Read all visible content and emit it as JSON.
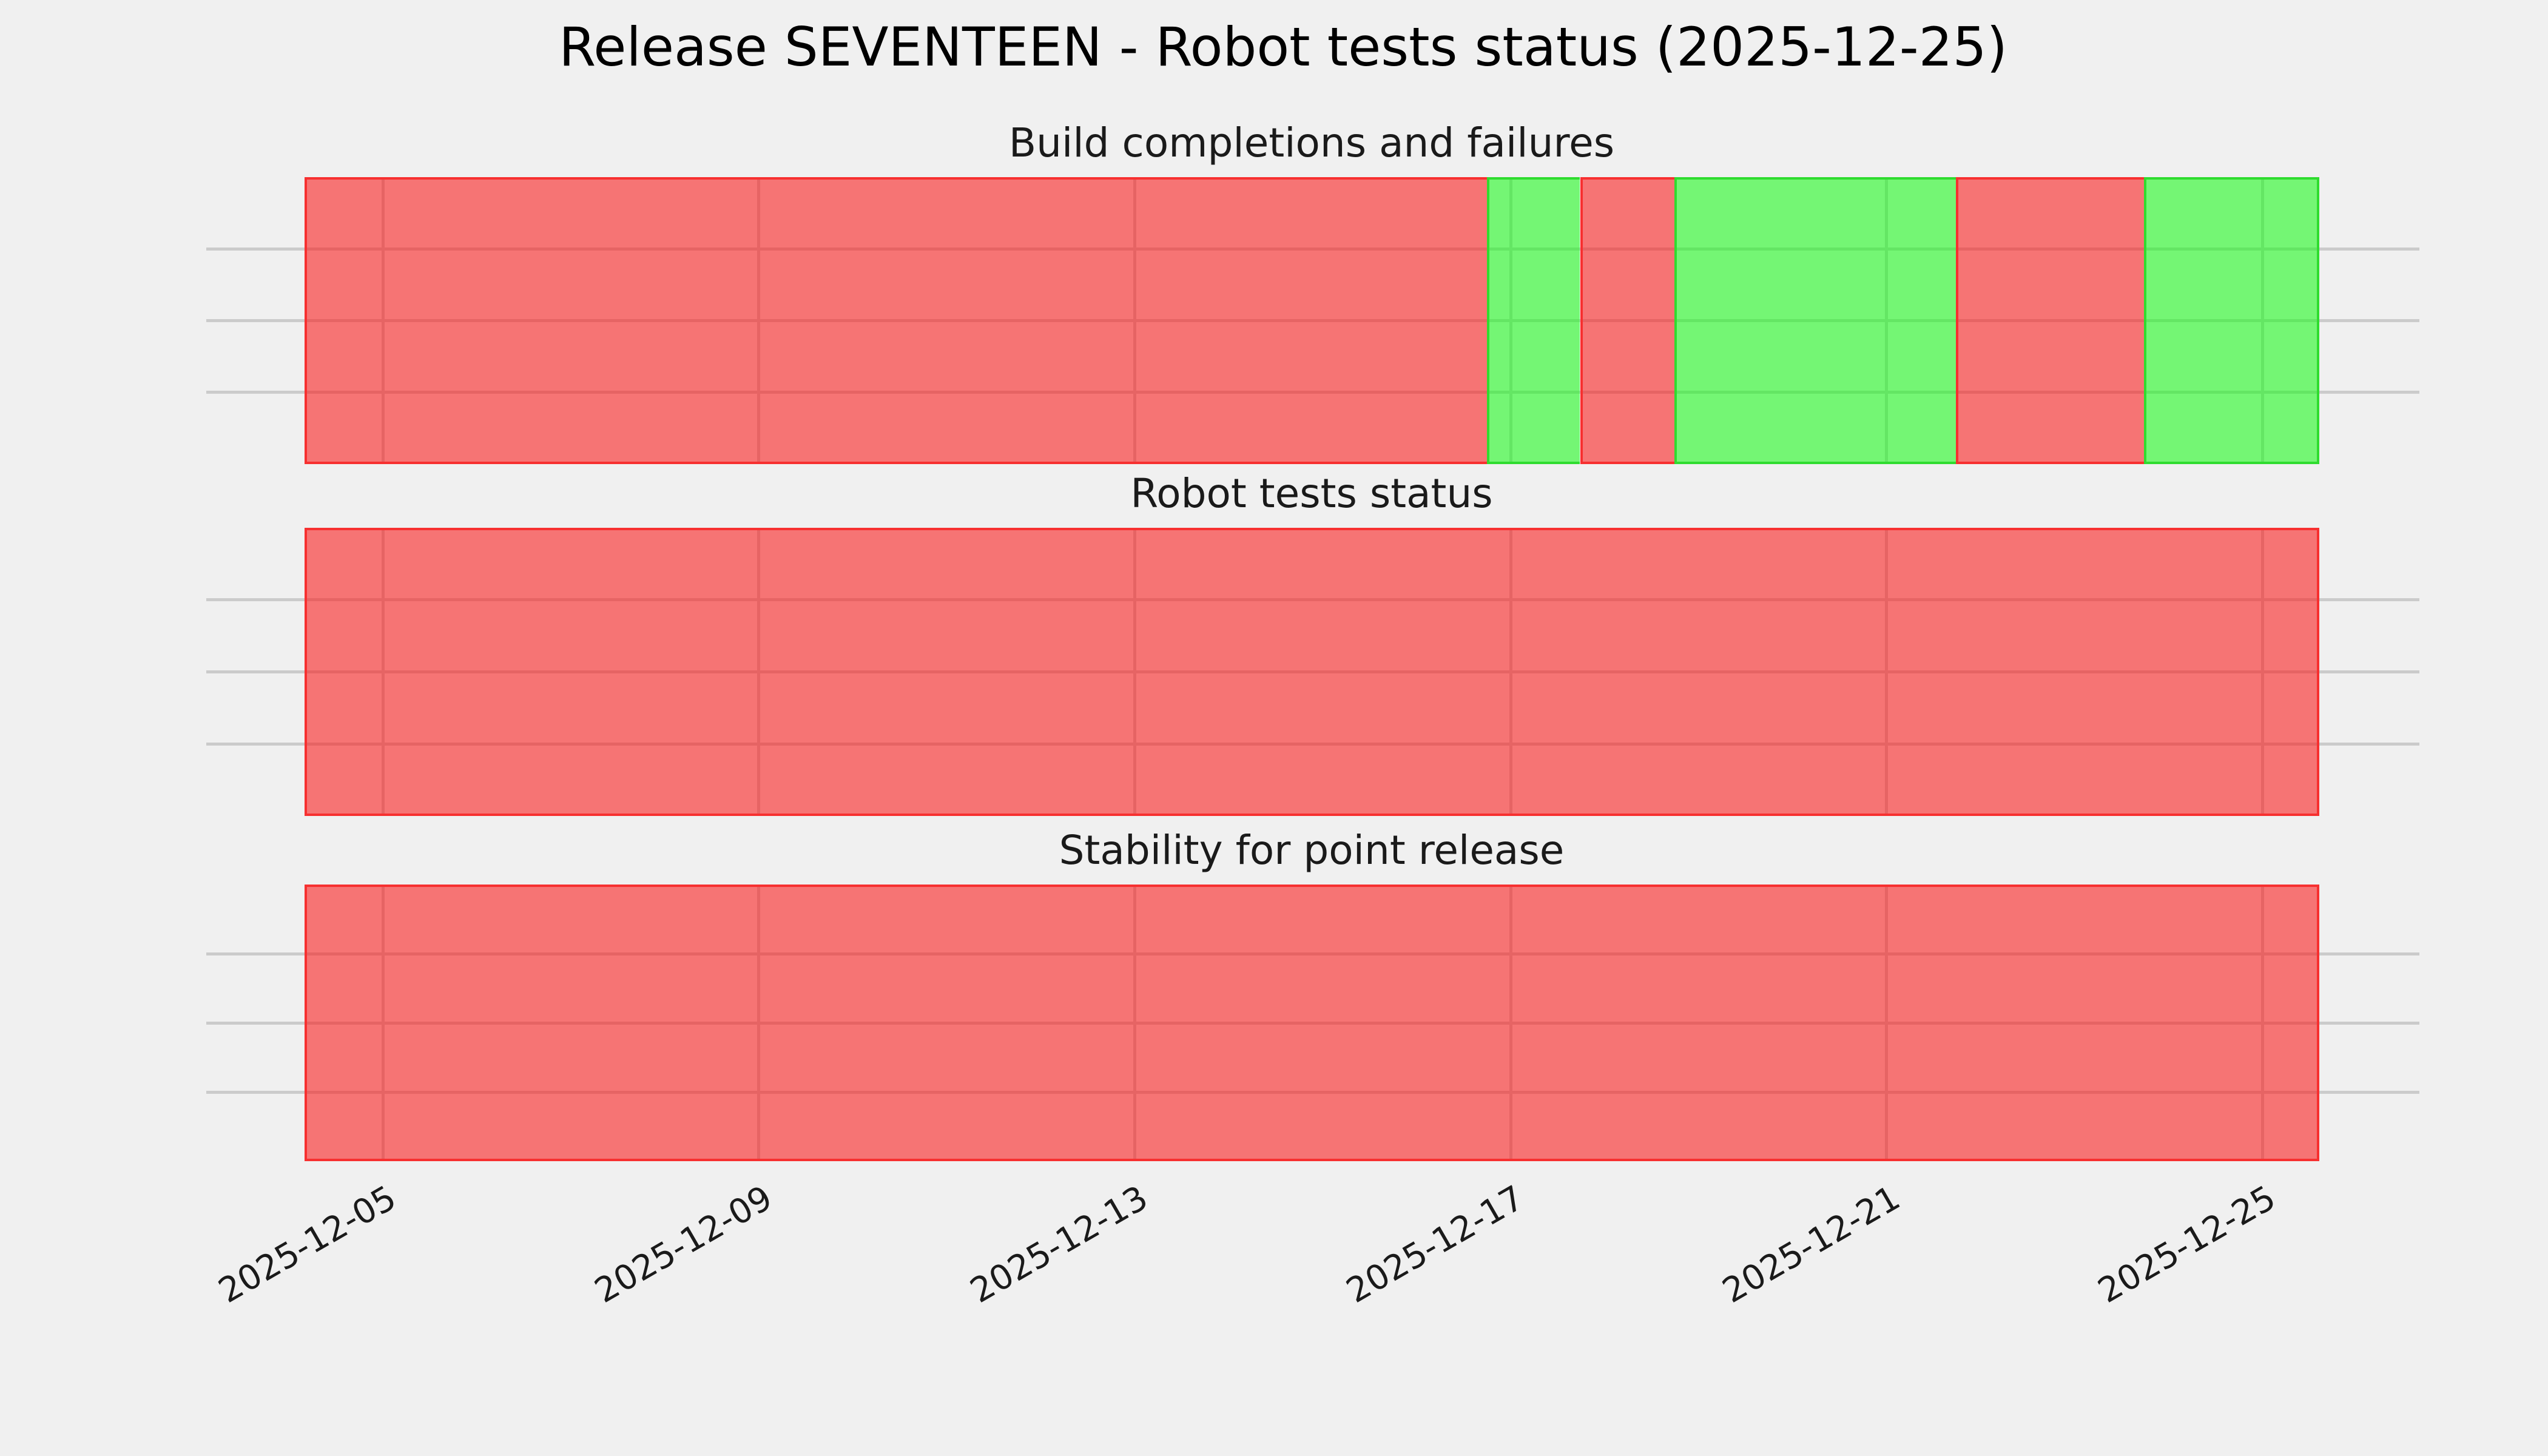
{
  "figure": {
    "background": "#F0F0F0",
    "grid_color": "#CBCBCB"
  },
  "chart_data": {
    "type": "heatmap",
    "title": "Release SEVENTEEN - Robot tests status (2025-12-25)",
    "legend": "none",
    "x_axis": {
      "start": "2025-12-04T04:00",
      "end": "2025-12-25T14:30",
      "ticks": [
        "2025-12-05",
        "2025-12-09",
        "2025-12-13",
        "2025-12-17",
        "2025-12-21",
        "2025-12-25"
      ],
      "tick_interval_days": 4,
      "tick_rotation_deg": 30,
      "grid": true
    },
    "y_axis": {
      "tick_labels": [],
      "rows_per_panel": 4,
      "grid": true
    },
    "status_colors": {
      "fail_fill": "rgba(250,25,25,0.58)",
      "pass_fill": "rgba(25,250,25,0.58)",
      "fail_edge": "#F73030",
      "pass_edge": "#2FDC2F"
    },
    "panels": [
      {
        "title": "Build completions and failures",
        "segments": [
          {
            "status": "fail",
            "from": "2025-12-04T04:00",
            "to": "2025-12-16T18:00"
          },
          {
            "status": "pass",
            "from": "2025-12-16T18:00",
            "to": "2025-12-17T17:45"
          },
          {
            "status": "fail",
            "from": "2025-12-17T17:45",
            "to": "2025-12-18T17:45"
          },
          {
            "status": "pass",
            "from": "2025-12-18T17:45",
            "to": "2025-12-21T17:45"
          },
          {
            "status": "fail",
            "from": "2025-12-21T17:45",
            "to": "2025-12-23T17:45"
          },
          {
            "status": "pass",
            "from": "2025-12-23T17:45",
            "to": "2025-12-25T14:30"
          }
        ]
      },
      {
        "title": "Robot tests status",
        "segments": [
          {
            "status": "fail",
            "from": "2025-12-04T04:00",
            "to": "2025-12-25T14:30"
          }
        ]
      },
      {
        "title": "Stability for point release",
        "segments": [
          {
            "status": "fail",
            "from": "2025-12-04T04:00",
            "to": "2025-12-25T14:30"
          }
        ]
      }
    ]
  }
}
